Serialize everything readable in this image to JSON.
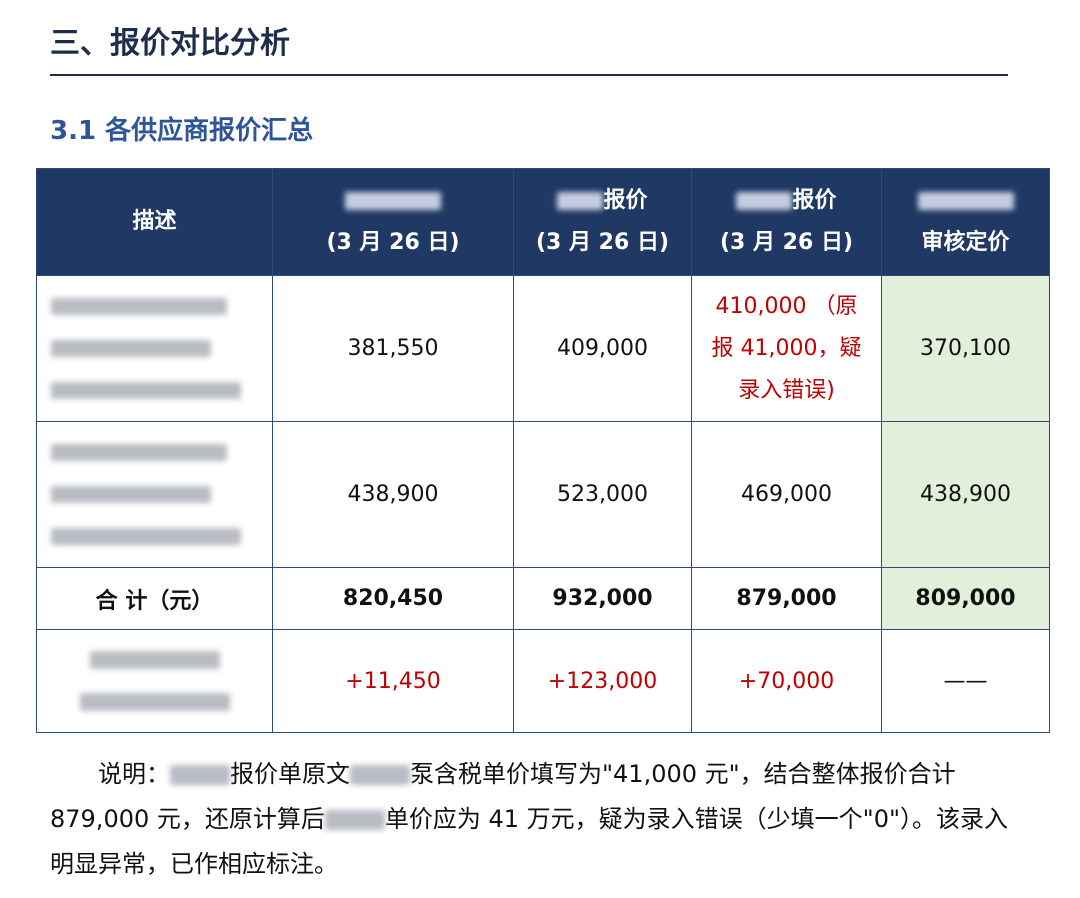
{
  "header": {
    "title": "三、报价对比分析",
    "subtitle": "3.1 各供应商报价汇总"
  },
  "table": {
    "header": [
      [
        "描述"
      ],
      [
        "(3 月 26 日)"
      ],
      [
        "报价",
        "(3 月 26 日)"
      ],
      [
        "报价",
        "(3 月 26 日)"
      ],
      [
        "审核定价"
      ]
    ],
    "rows": [
      [
        "381,550",
        "409,000",
        "410,000 （原报 41,000，疑录入错误)",
        "370,100"
      ],
      [
        "438,900",
        "523,000",
        "469,000",
        "438,900"
      ]
    ],
    "total": [
      "合 计（元）",
      "820,450",
      "932,000",
      "879,000",
      "809,000"
    ],
    "diff": [
      "+11,450",
      "+123,000",
      "+70,000",
      "——"
    ]
  },
  "note": [
    "说明：",
    "报价单原文",
    "泵含税单价填写为\"41,000 元\"，结合整体报价合计 879,000 元，还原计算后",
    "单价应为 41 万元，疑为录入错误（少填一个\"0\"）。该录入明显异常，已作相应标注。"
  ]
}
